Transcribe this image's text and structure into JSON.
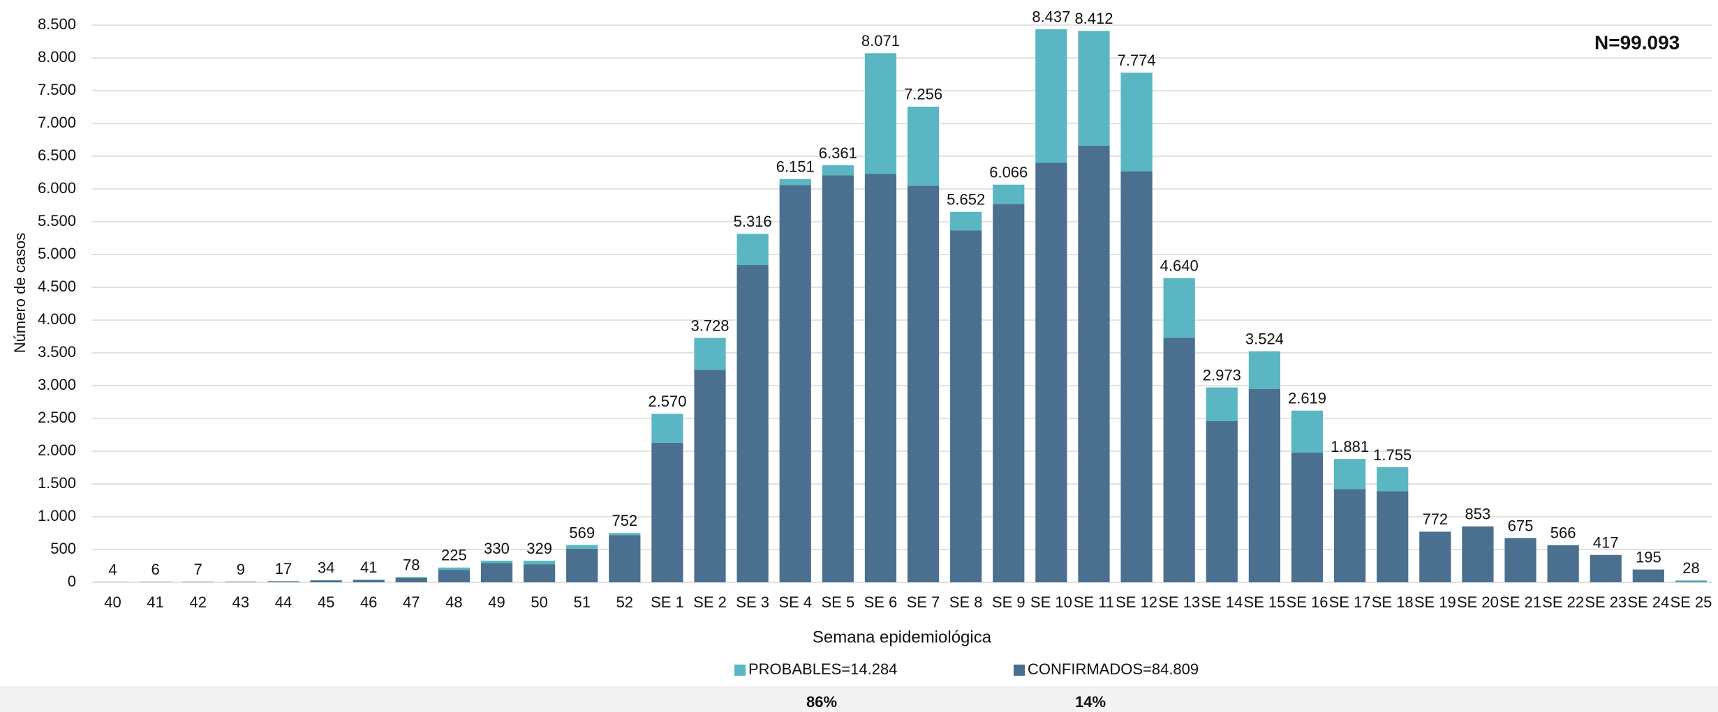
{
  "chart_data": {
    "type": "stacked_bar",
    "x_label": "Semana epidemiológica",
    "y_label": "Número de casos",
    "annotation": "N=99.093",
    "percent_labels": [
      "86%",
      "14%"
    ],
    "legend": "bottom",
    "grid": true,
    "categories": [
      "40",
      "41",
      "42",
      "43",
      "44",
      "45",
      "46",
      "47",
      "48",
      "49",
      "50",
      "51",
      "52",
      "SE 1",
      "SE 2",
      "SE 3",
      "SE 4",
      "SE 5",
      "SE 6",
      "SE 7",
      "SE 8",
      "SE 9",
      "SE 10",
      "SE 11",
      "SE 12",
      "SE 13",
      "SE 14",
      "SE 15",
      "SE 16",
      "SE 17",
      "SE 18",
      "SE 19",
      "SE 20",
      "SE 21",
      "SE 22",
      "SE 23",
      "SE 24",
      "SE 25"
    ],
    "series": [
      {
        "name": "CONFIRMADOS=84.809",
        "color": "#4a6f8f",
        "values": [
          4,
          6,
          7,
          9,
          15,
          30,
          35,
          70,
          190,
          295,
          275,
          510,
          720,
          2130,
          3240,
          4840,
          6060,
          6210,
          6230,
          6050,
          5370,
          5770,
          6400,
          6660,
          6270,
          3730,
          2460,
          2950,
          1980,
          1420,
          1390,
          772,
          853,
          675,
          566,
          417,
          195,
          10
        ]
      },
      {
        "name": "PROBABLES=14.284",
        "color": "#59b6c2",
        "values": [
          0,
          0,
          0,
          0,
          2,
          4,
          6,
          8,
          35,
          35,
          54,
          59,
          32,
          440,
          488,
          476,
          91,
          151,
          1841,
          1206,
          282,
          296,
          2037,
          1752,
          1504,
          910,
          513,
          574,
          639,
          461,
          365,
          0,
          0,
          0,
          0,
          0,
          0,
          18
        ]
      }
    ],
    "totals": {
      "values": [
        4,
        6,
        7,
        9,
        17,
        34,
        41,
        78,
        225,
        330,
        329,
        569,
        752,
        2570,
        3728,
        5316,
        6151,
        6361,
        8071,
        7256,
        5652,
        6066,
        8437,
        8412,
        7774,
        4640,
        2973,
        3524,
        2619,
        1881,
        1755,
        772,
        853,
        675,
        566,
        417,
        195,
        28
      ],
      "value_labels": [
        "4",
        "6",
        "7",
        "9",
        "17",
        "34",
        "41",
        "78",
        "225",
        "330",
        "329",
        "569",
        "752",
        "2.570",
        "3.728",
        "5.316",
        "6.151",
        "6.361",
        "8.071",
        "7.256",
        "5.652",
        "6.066",
        "8.437",
        "8.412",
        "7.774",
        "4.640",
        "2.973",
        "3.524",
        "2.619",
        "1.881",
        "1.755",
        "772",
        "853",
        "675",
        "566",
        "417",
        "195",
        "28"
      ]
    },
    "ylim": [
      0,
      8500
    ],
    "yticks": [
      0,
      500,
      {
        "value": 1000,
        "label": "1.000"
      },
      {
        "value": 1500,
        "label": "1.500"
      },
      {
        "value": 2000,
        "label": "2.000"
      },
      {
        "value": 2500,
        "label": "2.500"
      },
      {
        "value": 3000,
        "label": "3.000"
      },
      {
        "value": 3500,
        "label": "3.500"
      },
      {
        "value": 4000,
        "label": "4.000"
      },
      {
        "value": 4500,
        "label": "4.500"
      },
      {
        "value": 5000,
        "label": "5.000"
      },
      {
        "value": 5500,
        "label": "5.500"
      },
      {
        "value": 6000,
        "label": "6.000"
      },
      {
        "value": 6500,
        "label": "6.500"
      },
      {
        "value": 7000,
        "label": "7.000"
      },
      {
        "value": 7500,
        "label": "7.500"
      },
      {
        "value": 8000,
        "label": "8.000"
      },
      {
        "value": 8500,
        "label": "8.500"
      }
    ]
  }
}
